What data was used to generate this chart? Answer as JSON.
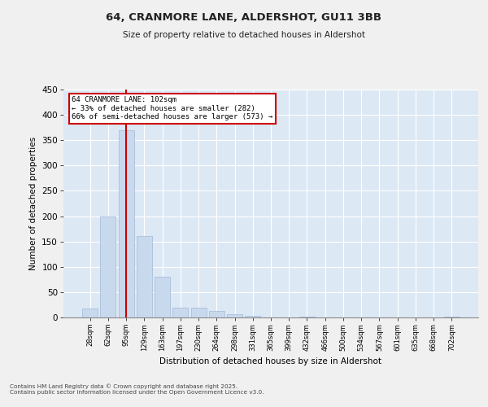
{
  "title_line1": "64, CRANMORE LANE, ALDERSHOT, GU11 3BB",
  "title_line2": "Size of property relative to detached houses in Aldershot",
  "xlabel": "Distribution of detached houses by size in Aldershot",
  "ylabel": "Number of detached properties",
  "categories": [
    "28sqm",
    "62sqm",
    "95sqm",
    "129sqm",
    "163sqm",
    "197sqm",
    "230sqm",
    "264sqm",
    "298sqm",
    "331sqm",
    "365sqm",
    "399sqm",
    "432sqm",
    "466sqm",
    "500sqm",
    "534sqm",
    "567sqm",
    "601sqm",
    "635sqm",
    "668sqm",
    "702sqm"
  ],
  "values": [
    17,
    200,
    370,
    160,
    80,
    20,
    20,
    13,
    7,
    4,
    0,
    0,
    1,
    0,
    0,
    0,
    0,
    0,
    0,
    0,
    2
  ],
  "bar_color": "#c9d9ed",
  "bar_edge_color": "#a0b8d8",
  "vline_x_index": 2,
  "vline_color": "#cc0000",
  "annotation_text": "64 CRANMORE LANE: 102sqm\n← 33% of detached houses are smaller (282)\n66% of semi-detached houses are larger (573) →",
  "annotation_box_color": "#ffffff",
  "annotation_box_edge": "#cc0000",
  "ylim": [
    0,
    450
  ],
  "yticks": [
    0,
    50,
    100,
    150,
    200,
    250,
    300,
    350,
    400,
    450
  ],
  "background_color": "#dde8f5",
  "grid_color": "#ffffff",
  "fig_bg_color": "#f0f0f0",
  "footer_line1": "Contains HM Land Registry data © Crown copyright and database right 2025.",
  "footer_line2": "Contains public sector information licensed under the Open Government Licence v3.0."
}
